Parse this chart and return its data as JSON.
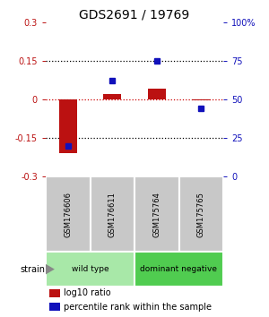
{
  "title": "GDS2691 / 19769",
  "samples": [
    "GSM176606",
    "GSM176611",
    "GSM175764",
    "GSM175765"
  ],
  "log10_ratio": [
    -0.21,
    0.02,
    0.04,
    -0.005
  ],
  "percentile_rank": [
    20,
    62,
    75,
    44
  ],
  "groups": [
    {
      "label": "wild type",
      "samples": [
        0,
        1
      ],
      "color": "#a8e8a8"
    },
    {
      "label": "dominant negative",
      "samples": [
        2,
        3
      ],
      "color": "#50cc50"
    }
  ],
  "ylim": [
    -0.3,
    0.3
  ],
  "y_ticks_left": [
    -0.3,
    -0.15,
    0,
    0.15,
    0.3
  ],
  "y_ticks_right": [
    0,
    25,
    50,
    75,
    100
  ],
  "hlines_dotted": [
    -0.15,
    0.15
  ],
  "bar_color_red": "#bb1111",
  "bar_color_blue": "#1111bb",
  "sample_box_color": "#c8c8c8",
  "zero_line_color": "#cc0000",
  "title_fontsize": 10,
  "tick_fontsize": 7,
  "legend_fontsize": 7
}
